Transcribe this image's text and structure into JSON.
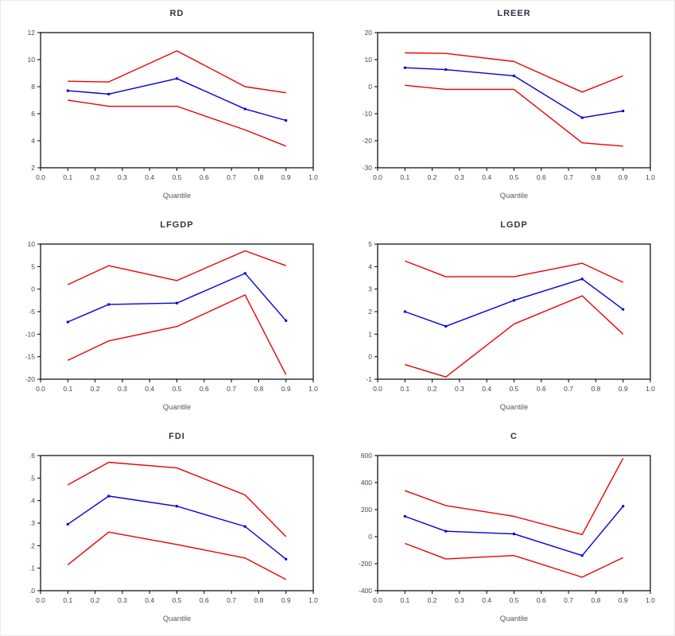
{
  "figure": {
    "x_tick_labels": [
      "0.0",
      "0.1",
      "0.2",
      "0.3",
      "0.4",
      "0.5",
      "0.6",
      "0.7",
      "0.8",
      "0.9",
      "1.0"
    ],
    "colors": {
      "estimate_line": "#0000dd",
      "confidence_band": "#ee0000",
      "frame": "#000000",
      "tick_text": "#444455"
    }
  },
  "chart_data": [
    {
      "type": "line",
      "title": "RD",
      "xlabel": "Quantile",
      "x": [
        0.1,
        0.25,
        0.5,
        0.75,
        0.9
      ],
      "xlim": [
        0,
        1
      ],
      "ylim": [
        2,
        12
      ],
      "yticks": [
        12,
        10,
        8,
        6,
        4,
        2
      ],
      "ytick_labels": [
        "12",
        "10",
        "8",
        "6",
        "4",
        "2"
      ],
      "grid": false,
      "legend": "none",
      "series": [
        {
          "name": "upper-ci",
          "color": "#ee0000",
          "values": [
            8.4,
            8.35,
            10.65,
            8.0,
            7.55
          ]
        },
        {
          "name": "estimate",
          "color": "#0000dd",
          "values": [
            7.7,
            7.45,
            8.6,
            6.35,
            5.5
          ]
        },
        {
          "name": "lower-ci",
          "color": "#ee0000",
          "values": [
            7.0,
            6.55,
            6.55,
            4.8,
            3.6
          ]
        }
      ]
    },
    {
      "type": "line",
      "title": "LREER",
      "xlabel": "Quantile",
      "x": [
        0.1,
        0.25,
        0.5,
        0.75,
        0.9
      ],
      "xlim": [
        0,
        1
      ],
      "ylim": [
        -30,
        20
      ],
      "yticks": [
        20,
        10,
        0,
        -10,
        -20,
        -30
      ],
      "ytick_labels": [
        "20",
        "10",
        "0",
        "-10",
        "-20",
        "-30"
      ],
      "grid": false,
      "legend": "none",
      "series": [
        {
          "name": "upper-ci",
          "color": "#ee0000",
          "values": [
            12.5,
            12.3,
            9.3,
            -2.0,
            4.0
          ]
        },
        {
          "name": "estimate",
          "color": "#0000dd",
          "values": [
            7.0,
            6.3,
            4.0,
            -11.5,
            -9.0
          ]
        },
        {
          "name": "lower-ci",
          "color": "#ee0000",
          "values": [
            0.5,
            -1.0,
            -1.0,
            -20.8,
            -22.0
          ]
        }
      ]
    },
    {
      "type": "line",
      "title": "LFGDP",
      "xlabel": "Quantile",
      "x": [
        0.1,
        0.25,
        0.5,
        0.75,
        0.9
      ],
      "xlim": [
        0,
        1
      ],
      "ylim": [
        -20,
        10
      ],
      "yticks": [
        10,
        5,
        0,
        -5,
        -10,
        -15,
        -20
      ],
      "ytick_labels": [
        "10",
        "5",
        "0",
        "-5",
        "-10",
        "-15",
        "-20"
      ],
      "grid": false,
      "legend": "none",
      "series": [
        {
          "name": "upper-ci",
          "color": "#ee0000",
          "values": [
            1.0,
            5.2,
            1.9,
            8.5,
            5.2
          ]
        },
        {
          "name": "estimate",
          "color": "#0000dd",
          "values": [
            -7.3,
            -3.4,
            -3.1,
            3.5,
            -7.0
          ]
        },
        {
          "name": "lower-ci",
          "color": "#ee0000",
          "values": [
            -15.8,
            -11.5,
            -8.3,
            -1.3,
            -19.0
          ]
        }
      ]
    },
    {
      "type": "line",
      "title": "LGDP",
      "xlabel": "Quantile",
      "x": [
        0.1,
        0.25,
        0.5,
        0.75,
        0.9
      ],
      "xlim": [
        0,
        1
      ],
      "ylim": [
        -1,
        5
      ],
      "yticks": [
        5,
        4,
        3,
        2,
        1,
        0,
        -1
      ],
      "ytick_labels": [
        "5",
        "4",
        "3",
        "2",
        "1",
        "0",
        "-1"
      ],
      "grid": false,
      "legend": "none",
      "series": [
        {
          "name": "upper-ci",
          "color": "#ee0000",
          "values": [
            4.25,
            3.55,
            3.55,
            4.15,
            3.3
          ]
        },
        {
          "name": "estimate",
          "color": "#0000dd",
          "values": [
            2.0,
            1.35,
            2.5,
            3.45,
            2.1
          ]
        },
        {
          "name": "lower-ci",
          "color": "#ee0000",
          "values": [
            -0.35,
            -0.9,
            1.45,
            2.7,
            1.0
          ]
        }
      ]
    },
    {
      "type": "line",
      "title": "FDI",
      "xlabel": "Quantile",
      "x": [
        0.1,
        0.25,
        0.5,
        0.75,
        0.9
      ],
      "xlim": [
        0,
        1
      ],
      "ylim": [
        0,
        0.6
      ],
      "yticks": [
        0.6,
        0.5,
        0.4,
        0.3,
        0.2,
        0.1,
        0
      ],
      "ytick_labels": [
        ".6",
        ".5",
        ".4",
        ".3",
        ".2",
        ".1",
        ".0"
      ],
      "grid": false,
      "legend": "none",
      "series": [
        {
          "name": "upper-ci",
          "color": "#ee0000",
          "values": [
            0.47,
            0.57,
            0.545,
            0.425,
            0.24
          ]
        },
        {
          "name": "estimate",
          "color": "#0000dd",
          "values": [
            0.295,
            0.42,
            0.375,
            0.285,
            0.14
          ]
        },
        {
          "name": "lower-ci",
          "color": "#ee0000",
          "values": [
            0.115,
            0.26,
            0.205,
            0.145,
            0.05
          ]
        }
      ]
    },
    {
      "type": "line",
      "title": "C",
      "xlabel": "Quantile",
      "x": [
        0.1,
        0.25,
        0.5,
        0.75,
        0.9
      ],
      "xlim": [
        0,
        1
      ],
      "ylim": [
        -400,
        600
      ],
      "yticks": [
        600,
        400,
        200,
        0,
        -200,
        -400
      ],
      "ytick_labels": [
        "600",
        "400",
        "200",
        "0",
        "-200",
        "-400"
      ],
      "grid": false,
      "legend": "none",
      "series": [
        {
          "name": "upper-ci",
          "color": "#ee0000",
          "values": [
            340,
            230,
            150,
            15,
            580
          ]
        },
        {
          "name": "estimate",
          "color": "#0000dd",
          "values": [
            150,
            40,
            20,
            -140,
            225
          ]
        },
        {
          "name": "lower-ci",
          "color": "#ee0000",
          "values": [
            -50,
            -165,
            -140,
            -300,
            -155
          ]
        }
      ]
    }
  ]
}
